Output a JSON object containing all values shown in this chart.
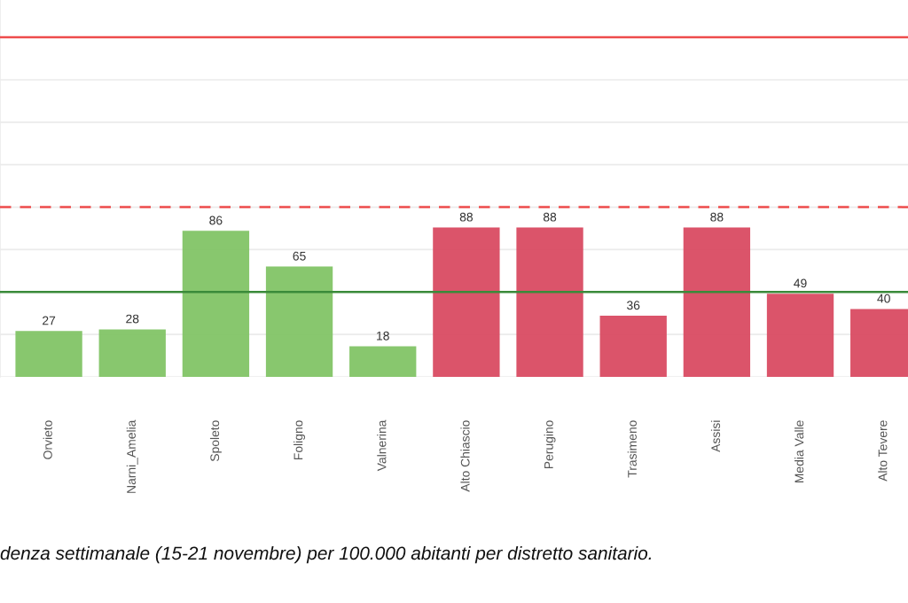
{
  "chart_data": {
    "type": "bar",
    "categories": [
      "Orvieto",
      "Narni_Amelia",
      "Spoleto",
      "Foligno",
      "Valnerina",
      "Alto Chiascio",
      "Perugino",
      "Trasimeno",
      "Assisi",
      "Media Valle",
      "Alto Tevere"
    ],
    "values": [
      27,
      28,
      86,
      65,
      18,
      88,
      88,
      36,
      88,
      49,
      40
    ],
    "colors": [
      "#82c466",
      "#82c466",
      "#82c466",
      "#82c466",
      "#82c466",
      "#d94b62",
      "#d94b62",
      "#d94b62",
      "#d94b62",
      "#d94b62",
      "#d94b62"
    ],
    "data_labels": true,
    "ylim": [
      0,
      222
    ],
    "yticks": [
      {
        "value": 0,
        "label": null
      },
      {
        "value": 25,
        "label": null
      },
      {
        "value": 50,
        "label": null
      },
      {
        "value": 75,
        "label": null
      },
      {
        "value": 100,
        "label": null
      },
      {
        "value": 125,
        "label": null
      },
      {
        "value": 150,
        "label": null
      },
      {
        "value": 175,
        "label": null
      },
      {
        "value": 200,
        "label": null
      }
    ],
    "grid": "y",
    "tick_labels": "x",
    "ref_lines": [
      {
        "axis": "y",
        "value": 50,
        "color": "#3a8a3a",
        "line_style": "solid"
      },
      {
        "axis": "y",
        "value": 100,
        "color": "#ee4c4c",
        "line_style": "dashed"
      },
      {
        "axis": "y",
        "value": 200,
        "color": "#ee4c4c",
        "line_style": "solid"
      }
    ],
    "annotations": [
      "denza settimanale (15-21 novembre) per 100.000 abitanti per distretto sanitario."
    ]
  }
}
